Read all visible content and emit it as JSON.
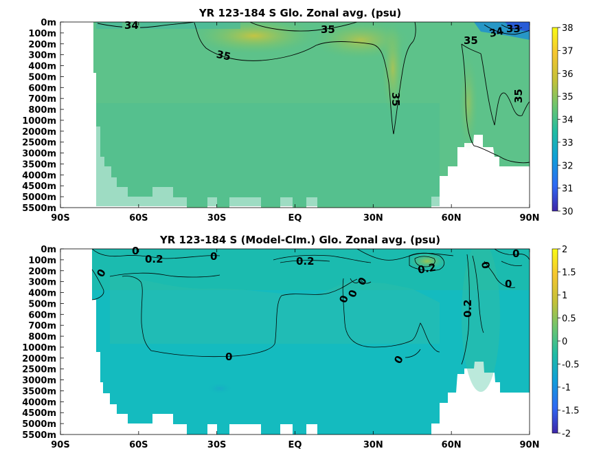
{
  "chart_data": [
    {
      "type": "heatmap",
      "title": "YR 123-184 S Glo. Zonal avg. (psu)",
      "xlabel": "",
      "ylabel": "",
      "x_ticks": [
        "90S",
        "60S",
        "30S",
        "EQ",
        "30N",
        "60N",
        "90N"
      ],
      "x_range": [
        -90,
        90
      ],
      "y_ticks": [
        "0m",
        "100m",
        "200m",
        "300m",
        "400m",
        "500m",
        "600m",
        "700m",
        "800m",
        "1000m",
        "2000m",
        "2500m",
        "3000m",
        "3500m",
        "4000m",
        "4500m",
        "5000m",
        "5500m"
      ],
      "colorbar": {
        "min": 30,
        "max": 38,
        "ticks": [
          "30",
          "31",
          "32",
          "33",
          "34",
          "35",
          "36",
          "37",
          "38"
        ]
      },
      "colormap": [
        "#3e26a8",
        "#2f69f4",
        "#10a0d8",
        "#21bca3",
        "#6cc570",
        "#c3c13a",
        "#f6c630",
        "#f9fb15"
      ],
      "contour_labels": [
        "34",
        "35",
        "35",
        "35",
        "35",
        "35",
        "34",
        "33"
      ],
      "fields": {
        "surface_35": 35.2,
        "interior": 34.7,
        "deep": 34.7
      }
    },
    {
      "type": "heatmap",
      "title": "YR 123-184 S (Model-Clm.) Glo. Zonal avg. (psu)",
      "xlabel": "",
      "ylabel": "",
      "x_ticks": [
        "90S",
        "60S",
        "30S",
        "EQ",
        "30N",
        "60N",
        "90N"
      ],
      "x_range": [
        -90,
        90
      ],
      "y_ticks": [
        "0m",
        "100m",
        "200m",
        "300m",
        "400m",
        "500m",
        "600m",
        "700m",
        "800m",
        "1000m",
        "2000m",
        "2500m",
        "3000m",
        "3500m",
        "4000m",
        "4500m",
        "5000m",
        "5500m"
      ],
      "colorbar": {
        "min": -2,
        "max": 2,
        "ticks": [
          "-2",
          "-1.5",
          "-1",
          "-0.5",
          "0",
          "0.5",
          "1",
          "1.5",
          "2"
        ]
      },
      "colormap": [
        "#3e26a8",
        "#2f69f4",
        "#10a0d8",
        "#21bca3",
        "#6cc570",
        "#c3c13a",
        "#f6c630",
        "#f9fb15"
      ],
      "contour_labels": [
        "0",
        "0.2",
        "0",
        "0.2",
        "0",
        "0",
        "0",
        "0",
        "0.2",
        "0",
        "0",
        "0.2",
        "0",
        "0",
        "0"
      ],
      "fields": {
        "background": -0.05,
        "surface_anomaly": 0.2
      }
    }
  ]
}
